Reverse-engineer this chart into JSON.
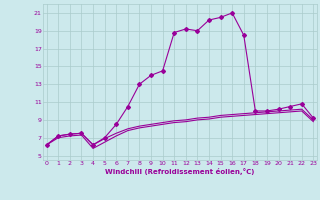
{
  "bg_color": "#cce9ec",
  "line_color": "#990099",
  "grid_color": "#aacccc",
  "xlim": [
    -0.3,
    23.3
  ],
  "ylim": [
    4.5,
    22.0
  ],
  "xtick_vals": [
    0,
    1,
    2,
    3,
    4,
    5,
    6,
    7,
    8,
    9,
    10,
    11,
    12,
    13,
    14,
    15,
    16,
    17,
    18,
    19,
    20,
    21,
    22,
    23
  ],
  "ytick_vals": [
    5,
    7,
    9,
    11,
    13,
    15,
    17,
    19,
    21
  ],
  "xlabel": "Windchill (Refroidissement éolien,°C)",
  "line1_x": [
    0,
    1,
    2,
    3,
    4,
    5,
    6,
    7,
    8,
    9,
    10,
    11,
    12,
    13,
    14,
    15,
    16,
    17,
    18,
    19,
    20,
    21,
    22,
    23
  ],
  "line1_y": [
    6.2,
    7.2,
    7.4,
    7.5,
    6.2,
    7.0,
    8.5,
    10.5,
    13.0,
    14.0,
    14.5,
    18.8,
    19.2,
    19.0,
    20.2,
    20.5,
    21.0,
    18.5,
    10.0,
    10.0,
    10.2,
    10.5,
    10.8,
    9.2
  ],
  "line2_x": [
    0,
    1,
    2,
    3,
    4,
    5,
    6,
    7,
    8,
    9,
    10,
    11,
    12,
    13,
    14,
    15,
    16,
    17,
    18,
    19,
    20,
    21,
    22,
    23
  ],
  "line2_y": [
    6.2,
    7.2,
    7.4,
    7.5,
    6.2,
    6.9,
    7.5,
    8.0,
    8.3,
    8.5,
    8.7,
    8.9,
    9.0,
    9.2,
    9.3,
    9.5,
    9.6,
    9.7,
    9.8,
    9.9,
    10.0,
    10.1,
    10.2,
    9.0
  ],
  "line3_x": [
    0,
    1,
    2,
    3,
    4,
    5,
    6,
    7,
    8,
    9,
    10,
    11,
    12,
    13,
    14,
    15,
    16,
    17,
    18,
    19,
    20,
    21,
    22,
    23
  ],
  "line3_y": [
    6.2,
    7.0,
    7.2,
    7.3,
    5.8,
    6.5,
    7.2,
    7.8,
    8.1,
    8.3,
    8.5,
    8.7,
    8.8,
    9.0,
    9.1,
    9.3,
    9.4,
    9.5,
    9.6,
    9.7,
    9.8,
    9.9,
    10.0,
    8.8
  ],
  "tick_fontsize": 4.5,
  "xlabel_fontsize": 5.0,
  "marker_size": 2.0,
  "line_width": 0.8
}
